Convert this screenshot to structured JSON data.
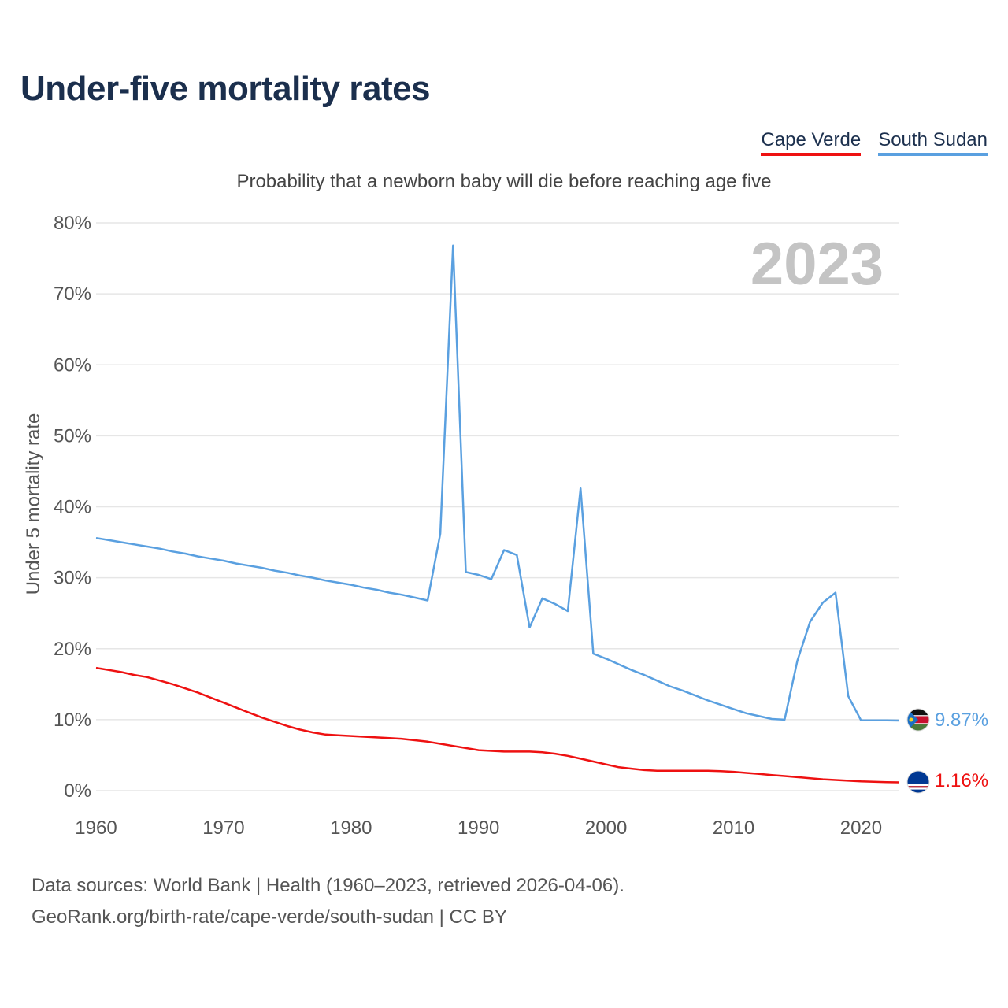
{
  "title": "Under-five mortality rates",
  "subtitle": "Probability that a newborn baby will die before reaching age five",
  "legend": [
    {
      "name": "Cape Verde",
      "color": "#ee1111"
    },
    {
      "name": "South Sudan",
      "color": "#5aa0e0"
    }
  ],
  "footer": {
    "line1": "Data sources: World Bank | Health (1960–2023, retrieved 2026-04-06).",
    "line2": "GeoRank.org/birth-rate/cape-verde/south-sudan | CC BY"
  },
  "chart_data": {
    "type": "line",
    "title": "Under-five mortality rates",
    "subtitle": "Probability that a newborn baby will die before reaching age five",
    "xlabel": "",
    "ylabel": "Under 5 mortality rate",
    "xlim": [
      1960,
      2023
    ],
    "ylim": [
      0,
      80
    ],
    "x_ticks": [
      1960,
      1970,
      1980,
      1990,
      2000,
      2010,
      2020
    ],
    "y_ticks": [
      0,
      10,
      20,
      30,
      40,
      50,
      60,
      70,
      80
    ],
    "y_tick_labels": [
      "0%",
      "10%",
      "20%",
      "30%",
      "40%",
      "50%",
      "60%",
      "70%",
      "80%"
    ],
    "grid": true,
    "year_label": "2023",
    "series": [
      {
        "name": "South Sudan",
        "color": "#5aa0e0",
        "end_label": "9.87%",
        "x": [
          1960,
          1961,
          1962,
          1963,
          1964,
          1965,
          1966,
          1967,
          1968,
          1969,
          1970,
          1971,
          1972,
          1973,
          1974,
          1975,
          1976,
          1977,
          1978,
          1979,
          1980,
          1981,
          1982,
          1983,
          1984,
          1985,
          1986,
          1987,
          1988,
          1989,
          1990,
          1991,
          1992,
          1993,
          1994,
          1995,
          1996,
          1997,
          1998,
          1999,
          2000,
          2001,
          2002,
          2003,
          2004,
          2005,
          2006,
          2007,
          2008,
          2009,
          2010,
          2011,
          2012,
          2013,
          2014,
          2015,
          2016,
          2017,
          2018,
          2019,
          2020,
          2021,
          2022,
          2023
        ],
        "values": [
          35.6,
          35.3,
          35.0,
          34.7,
          34.4,
          34.1,
          33.7,
          33.4,
          33.0,
          32.7,
          32.4,
          32.0,
          31.7,
          31.4,
          31.0,
          30.7,
          30.3,
          30.0,
          29.6,
          29.3,
          29.0,
          28.6,
          28.3,
          27.9,
          27.6,
          27.2,
          26.8,
          36.2,
          76.8,
          30.8,
          30.4,
          29.8,
          33.9,
          33.2,
          23.0,
          27.1,
          26.3,
          25.3,
          42.6,
          19.3,
          18.6,
          17.8,
          17.0,
          16.3,
          15.5,
          14.7,
          14.1,
          13.4,
          12.7,
          12.1,
          11.5,
          10.9,
          10.5,
          10.1,
          10.0,
          18.3,
          23.8,
          26.5,
          27.9,
          13.3,
          9.9,
          9.9,
          9.9,
          9.87
        ]
      },
      {
        "name": "Cape Verde",
        "color": "#ee1111",
        "end_label": "1.16%",
        "x": [
          1960,
          1961,
          1962,
          1963,
          1964,
          1965,
          1966,
          1967,
          1968,
          1969,
          1970,
          1971,
          1972,
          1973,
          1974,
          1975,
          1976,
          1977,
          1978,
          1979,
          1980,
          1981,
          1982,
          1983,
          1984,
          1985,
          1986,
          1987,
          1988,
          1989,
          1990,
          1991,
          1992,
          1993,
          1994,
          1995,
          1996,
          1997,
          1998,
          1999,
          2000,
          2001,
          2002,
          2003,
          2004,
          2005,
          2006,
          2007,
          2008,
          2009,
          2010,
          2011,
          2012,
          2013,
          2014,
          2015,
          2016,
          2017,
          2018,
          2019,
          2020,
          2021,
          2022,
          2023
        ],
        "values": [
          17.3,
          17.0,
          16.7,
          16.3,
          16.0,
          15.5,
          15.0,
          14.4,
          13.8,
          13.1,
          12.4,
          11.7,
          11.0,
          10.3,
          9.7,
          9.1,
          8.6,
          8.2,
          7.9,
          7.8,
          7.7,
          7.6,
          7.5,
          7.4,
          7.3,
          7.1,
          6.9,
          6.6,
          6.3,
          6.0,
          5.7,
          5.6,
          5.5,
          5.5,
          5.5,
          5.4,
          5.2,
          4.9,
          4.5,
          4.1,
          3.7,
          3.3,
          3.1,
          2.9,
          2.8,
          2.8,
          2.8,
          2.8,
          2.8,
          2.75,
          2.65,
          2.5,
          2.35,
          2.2,
          2.05,
          1.9,
          1.75,
          1.6,
          1.5,
          1.4,
          1.3,
          1.25,
          1.2,
          1.16
        ]
      }
    ]
  }
}
